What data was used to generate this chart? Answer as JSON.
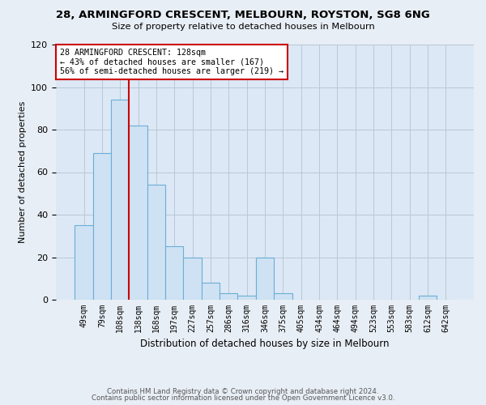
{
  "title": "28, ARMINGFORD CRESCENT, MELBOURN, ROYSTON, SG8 6NG",
  "subtitle": "Size of property relative to detached houses in Melbourn",
  "xlabel": "Distribution of detached houses by size in Melbourn",
  "ylabel": "Number of detached properties",
  "bar_values": [
    35,
    69,
    94,
    82,
    54,
    25,
    20,
    8,
    3,
    2,
    20,
    3,
    0,
    0,
    0,
    0,
    0,
    0,
    0,
    2,
    0
  ],
  "bin_labels": [
    "49sqm",
    "79sqm",
    "108sqm",
    "138sqm",
    "168sqm",
    "197sqm",
    "227sqm",
    "257sqm",
    "286sqm",
    "316sqm",
    "346sqm",
    "375sqm",
    "405sqm",
    "434sqm",
    "464sqm",
    "494sqm",
    "523sqm",
    "553sqm",
    "583sqm",
    "612sqm",
    "642sqm"
  ],
  "bar_color": "#cfe2f3",
  "bar_edge_color": "#6aaed6",
  "vline_x": 2.5,
  "vline_color": "#cc0000",
  "annotation_box_color": "#cc0000",
  "annotation_lines": [
    "28 ARMINGFORD CRESCENT: 128sqm",
    "← 43% of detached houses are smaller (167)",
    "56% of semi-detached houses are larger (219) →"
  ],
  "ylim": [
    0,
    120
  ],
  "yticks": [
    0,
    20,
    40,
    60,
    80,
    100,
    120
  ],
  "footer1": "Contains HM Land Registry data © Crown copyright and database right 2024.",
  "footer2": "Contains public sector information licensed under the Open Government Licence v3.0.",
  "fig_bg_color": "#e8eef5",
  "plot_bg_color": "#dce8f5"
}
